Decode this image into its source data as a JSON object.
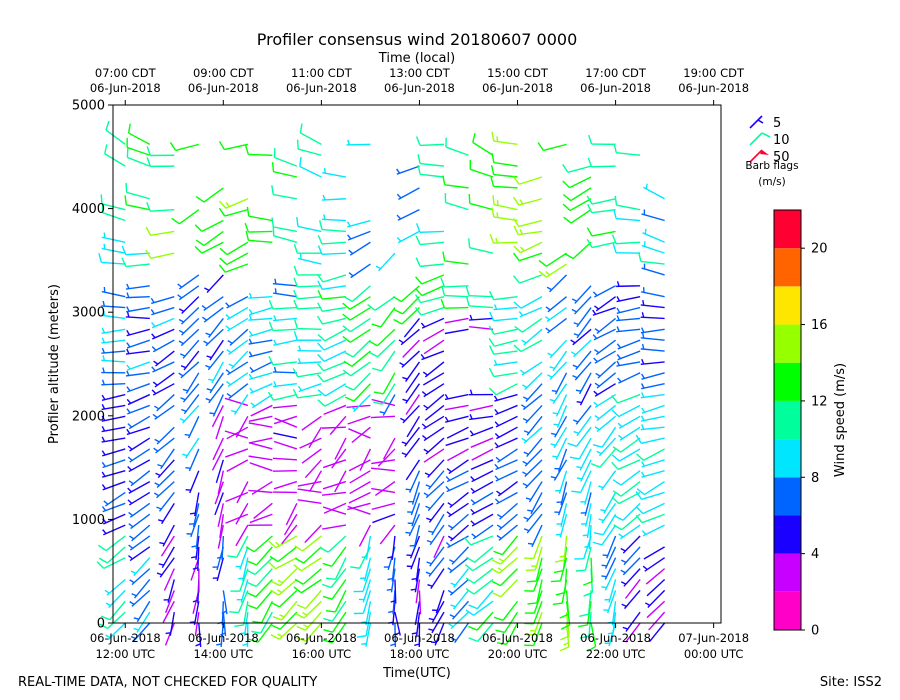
{
  "chart_data": {
    "type": "wind_barb_profile",
    "title": "Profiler consensus wind 20180607 0000",
    "top_axis_title": "Time (local)",
    "xlabel": "Time(UTC)",
    "ylabel": "Profiler altitude (meters)",
    "ylim": [
      0,
      5000
    ],
    "x_range_hours_utc": [
      11.75,
      24.15
    ],
    "y_ticks": [
      {
        "value": 0,
        "label": "0"
      },
      {
        "value": 1000,
        "label": "1000"
      },
      {
        "value": 2000,
        "label": "2000"
      },
      {
        "value": 3000,
        "label": "3000"
      },
      {
        "value": 4000,
        "label": "4000"
      },
      {
        "value": 5000,
        "label": "5000"
      }
    ],
    "x_ticks_bottom": [
      {
        "value": 12,
        "line1": "06-Jun-2018",
        "line2": "12:00 UTC"
      },
      {
        "value": 14,
        "line1": "06-Jun-2018",
        "line2": "14:00 UTC"
      },
      {
        "value": 16,
        "line1": "06-Jun-2018",
        "line2": "16:00 UTC"
      },
      {
        "value": 18,
        "line1": "06-Jun-2018",
        "line2": "18:00 UTC"
      },
      {
        "value": 20,
        "line1": "06-Jun-2018",
        "line2": "20:00 UTC"
      },
      {
        "value": 22,
        "line1": "06-Jun-2018",
        "line2": "22:00 UTC"
      },
      {
        "value": 24,
        "line1": "07-Jun-2018",
        "line2": "00:00 UTC"
      }
    ],
    "x_ticks_top": [
      {
        "value": 12,
        "line1": "07:00 CDT",
        "line2": "06-Jun-2018"
      },
      {
        "value": 14,
        "line1": "09:00 CDT",
        "line2": "06-Jun-2018"
      },
      {
        "value": 16,
        "line1": "11:00 CDT",
        "line2": "06-Jun-2018"
      },
      {
        "value": 18,
        "line1": "13:00 CDT",
        "line2": "06-Jun-2018"
      },
      {
        "value": 20,
        "line1": "15:00 CDT",
        "line2": "06-Jun-2018"
      },
      {
        "value": 22,
        "line1": "17:00 CDT",
        "line2": "06-Jun-2018"
      },
      {
        "value": 24,
        "line1": "19:00 CDT",
        "line2": "06-Jun-2018"
      }
    ],
    "legend": {
      "placement": "top-right",
      "entries": [
        {
          "label": "5",
          "color": "#1900ff"
        },
        {
          "label": "10",
          "color": "#00ff9c"
        },
        {
          "label": "50",
          "color": "#ff0032"
        }
      ],
      "caption_line1": "Barb flags",
      "caption_line2": "(m/s)"
    },
    "colorbar": {
      "label": "Wind speed (m/s)",
      "min": 0,
      "max": 22,
      "bounds": [
        0,
        2,
        4,
        6,
        8,
        10,
        12,
        14,
        16,
        18,
        20,
        22
      ],
      "colors": [
        "#ff00c8",
        "#c800ff",
        "#1900ff",
        "#0064ff",
        "#00e6ff",
        "#00ff9c",
        "#00ff00",
        "#96ff00",
        "#ffe600",
        "#ff6400",
        "#ff0032"
      ],
      "tick_labels": [
        {
          "value": 0,
          "label": "0"
        },
        {
          "value": 4,
          "label": "4"
        },
        {
          "value": 8,
          "label": "8"
        },
        {
          "value": 12,
          "label": "12"
        },
        {
          "value": 16,
          "label": "16"
        },
        {
          "value": 20,
          "label": "20"
        }
      ]
    },
    "profiles": {
      "description": "Wind barbs at each profile time and altitude; direction_deg = direction wind comes from, speed in m/s",
      "start_hour": 12.0,
      "step_minutes": 30,
      "count": 23,
      "height_step_m": 105,
      "samples": [
        {
          "t": 12.0,
          "h": 300,
          "speed": 13,
          "dir": 210
        },
        {
          "t": 12.5,
          "h": 1000,
          "speed": 8,
          "dir": 230
        },
        {
          "t": 13.0,
          "h": 2000,
          "speed": 5,
          "dir": 250
        },
        {
          "t": 14.5,
          "h": 1700,
          "speed": 3,
          "dir": 290
        },
        {
          "t": 16.0,
          "h": 600,
          "speed": 11,
          "dir": 200
        },
        {
          "t": 18.0,
          "h": 1800,
          "speed": 4,
          "dir": 320
        },
        {
          "t": 18.5,
          "h": 4400,
          "speed": 14,
          "dir": 260
        },
        {
          "t": 19.0,
          "h": 3300,
          "speed": 13,
          "dir": 240
        },
        {
          "t": 20.0,
          "h": 1200,
          "speed": 7,
          "dir": 20
        },
        {
          "t": 22.0,
          "h": 1000,
          "speed": 9,
          "dir": 200
        },
        {
          "t": 23.0,
          "h": 2800,
          "speed": 5,
          "dir": 260
        }
      ]
    }
  },
  "footer": {
    "left_note": "REAL-TIME DATA, NOT CHECKED FOR QUALITY",
    "site": "Site: ISS2"
  }
}
